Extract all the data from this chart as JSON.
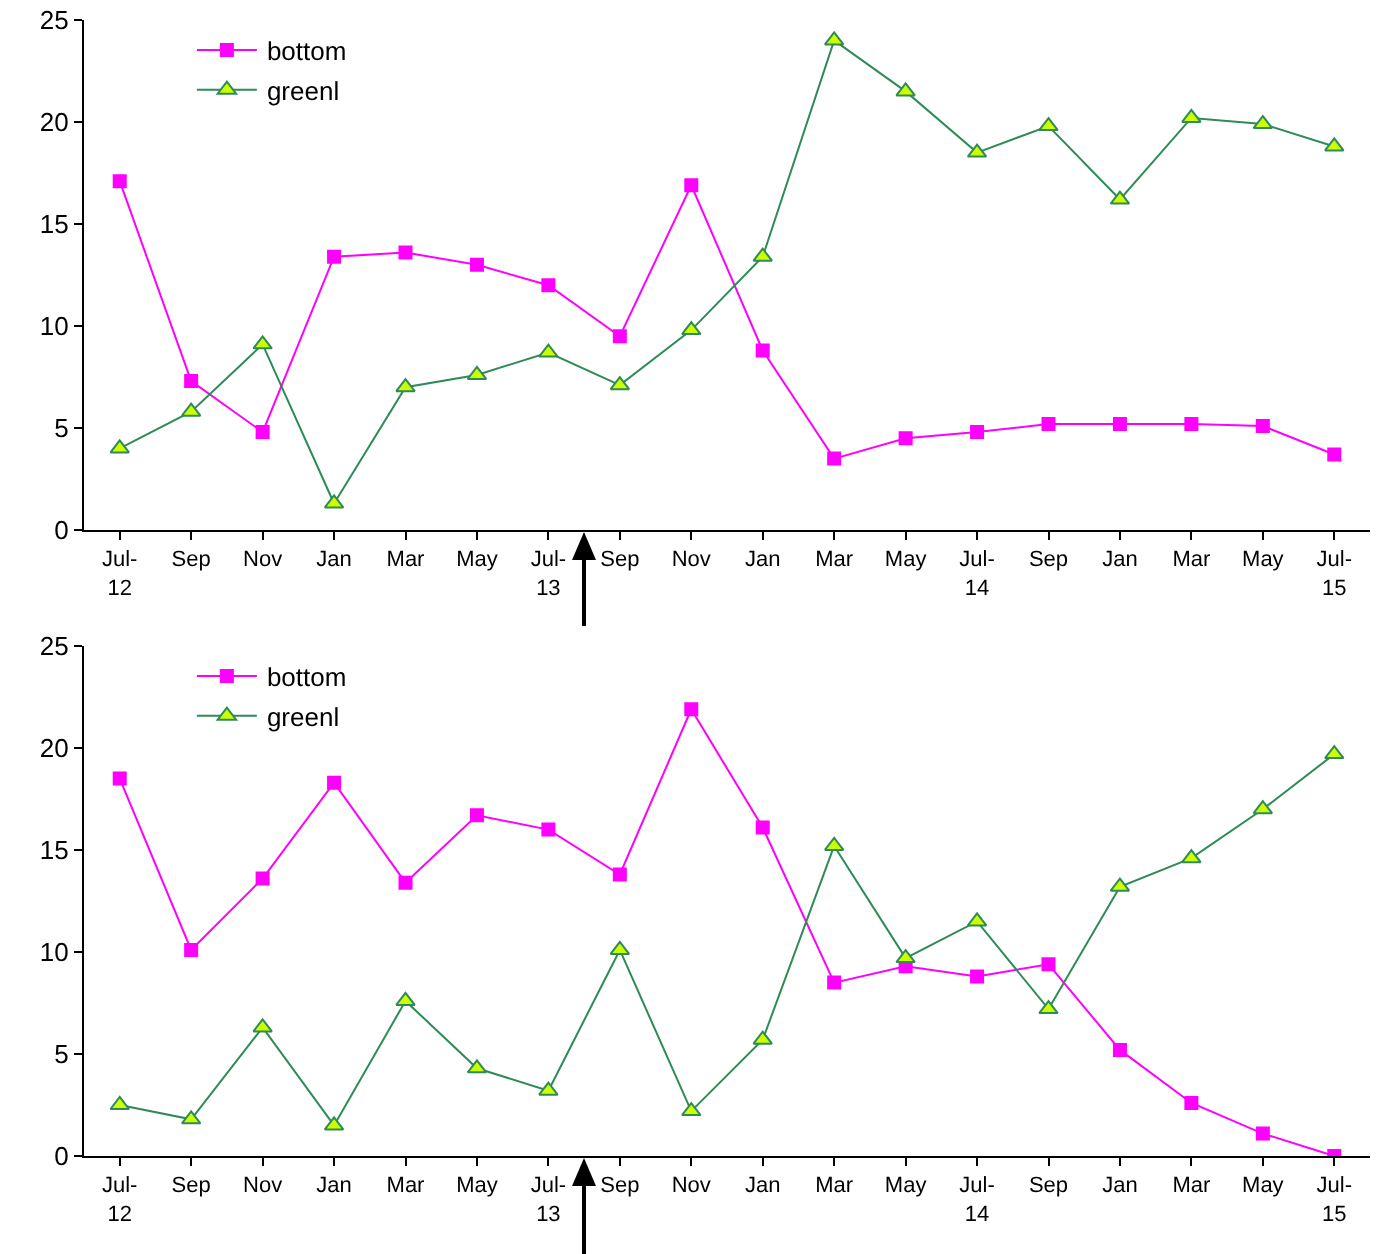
{
  "chart_data": [
    {
      "type": "line",
      "categories": [
        "Jul-\n12",
        "Sep",
        "Nov",
        "Jan",
        "Mar",
        "May",
        "Jul-\n13",
        "Sep",
        "Nov",
        "Jan",
        "Mar",
        "May",
        "Jul-\n14",
        "Sep",
        "Jan",
        "Mar",
        "May",
        "Jul-\n15"
      ],
      "series": [
        {
          "name": "bottom",
          "color": "#ff00ff",
          "marker": "square",
          "values": [
            17.1,
            7.3,
            4.8,
            13.4,
            13.6,
            13.0,
            12.0,
            9.5,
            16.9,
            8.8,
            3.5,
            4.5,
            4.8,
            5.2,
            5.2,
            5.2,
            5.1,
            3.7
          ]
        },
        {
          "name": "greenl",
          "color": "#2e8b57",
          "marker": "triangle",
          "values": [
            4.0,
            5.8,
            9.1,
            1.3,
            7.0,
            7.6,
            8.7,
            7.1,
            9.8,
            13.4,
            24.0,
            21.5,
            18.5,
            19.8,
            16.2,
            20.2,
            19.9,
            18.8
          ]
        }
      ],
      "ylim": [
        0,
        25
      ],
      "yticks": [
        0,
        5,
        10,
        15,
        20,
        25
      ],
      "grid": false,
      "legend": "top left"
    },
    {
      "type": "line",
      "categories": [
        "Jul-\n12",
        "Sep",
        "Nov",
        "Jan",
        "Mar",
        "May",
        "Jul-\n13",
        "Sep",
        "Nov",
        "Jan",
        "Mar",
        "May",
        "Jul-\n14",
        "Sep",
        "Jan",
        "Mar",
        "May",
        "Jul-\n15"
      ],
      "series": [
        {
          "name": "bottom",
          "color": "#ff00ff",
          "marker": "square",
          "values": [
            18.5,
            10.1,
            13.6,
            18.3,
            13.4,
            16.7,
            16.0,
            13.8,
            21.9,
            16.1,
            8.5,
            9.3,
            8.8,
            9.4,
            5.2,
            2.6,
            1.1,
            0
          ]
        },
        {
          "name": "greenl",
          "color": "#2e8b57",
          "marker": "triangle",
          "values": [
            2.5,
            1.8,
            6.3,
            1.5,
            7.6,
            4.3,
            3.2,
            10.1,
            2.2,
            5.7,
            15.2,
            9.7,
            11.5,
            7.2,
            13.2,
            14.6,
            17.0,
            19.7
          ]
        }
      ],
      "ylim": [
        0,
        25
      ],
      "yticks": [
        0,
        5,
        10,
        15,
        20,
        25
      ],
      "grid": false,
      "legend": "top left"
    }
  ]
}
